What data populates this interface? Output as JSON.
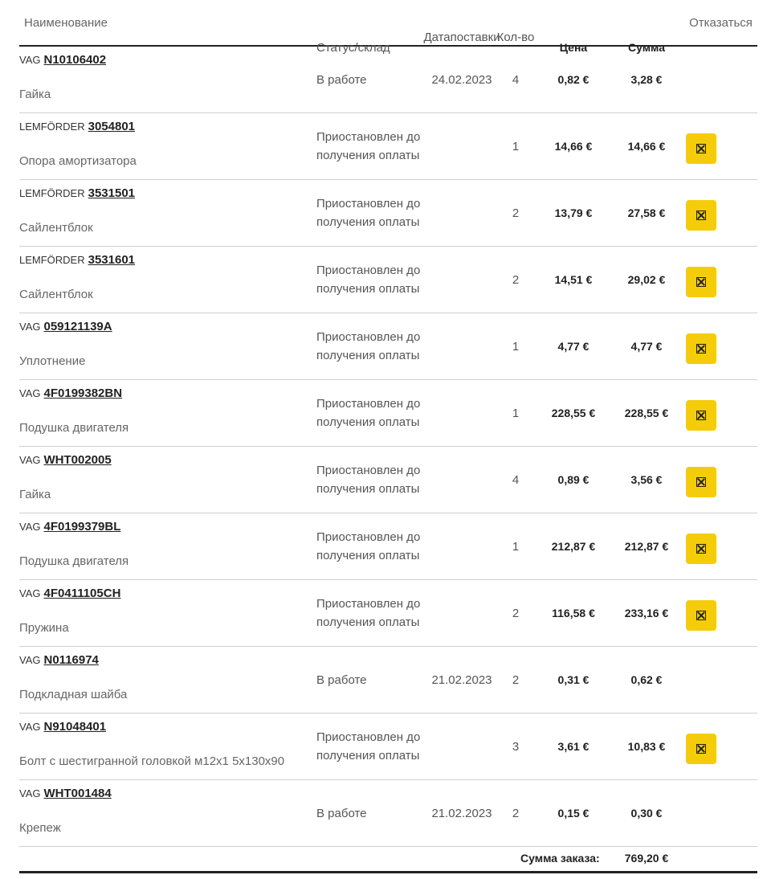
{
  "headers": {
    "name": "Наименование",
    "status": "Статус/склад",
    "date_line1": "Дата",
    "date_line2": "поставки",
    "qty_line1": "Кол-",
    "qty_line2": "во",
    "price": "Цена",
    "sum": "Сумма",
    "cancel": "Отказаться"
  },
  "rows": [
    {
      "brand": "VAG",
      "article": "N10106402",
      "descr": "Гайка",
      "status": "В работе",
      "date": "24.02.2023",
      "qty": "4",
      "price": "0,82 €",
      "sum": "3,28 €",
      "cancellable": false
    },
    {
      "brand": "LEMFÖRDER",
      "article": "3054801",
      "descr": "Опора амортизатора",
      "status": "Приостановлен до получения оплаты",
      "date": "",
      "qty": "1",
      "price": "14,66 €",
      "sum": "14,66 €",
      "cancellable": true
    },
    {
      "brand": "LEMFÖRDER",
      "article": "3531501",
      "descr": "Сайлентблок",
      "status": "Приостановлен до получения оплаты",
      "date": "",
      "qty": "2",
      "price": "13,79 €",
      "sum": "27,58 €",
      "cancellable": true
    },
    {
      "brand": "LEMFÖRDER",
      "article": "3531601",
      "descr": "Сайлентблок",
      "status": "Приостановлен до получения оплаты",
      "date": "",
      "qty": "2",
      "price": "14,51 €",
      "sum": "29,02 €",
      "cancellable": true
    },
    {
      "brand": "VAG",
      "article": "059121139A",
      "descr": "Уплотнение",
      "status": "Приостановлен до получения оплаты",
      "date": "",
      "qty": "1",
      "price": "4,77 €",
      "sum": "4,77 €",
      "cancellable": true
    },
    {
      "brand": "VAG",
      "article": "4F0199382BN",
      "descr": "Подушка двигателя",
      "status": "Приостановлен до получения оплаты",
      "date": "",
      "qty": "1",
      "price": "228,55 €",
      "sum": "228,55 €",
      "cancellable": true
    },
    {
      "brand": "VAG",
      "article": "WHT002005",
      "descr": "Гайка",
      "status": "Приостановлен до получения оплаты",
      "date": "",
      "qty": "4",
      "price": "0,89 €",
      "sum": "3,56 €",
      "cancellable": true
    },
    {
      "brand": "VAG",
      "article": "4F0199379BL",
      "descr": "Подушка двигателя",
      "status": "Приостановлен до получения оплаты",
      "date": "",
      "qty": "1",
      "price": "212,87 €",
      "sum": "212,87 €",
      "cancellable": true
    },
    {
      "brand": "VAG",
      "article": "4F0411105CH",
      "descr": "Пружина",
      "status": "Приостановлен до получения оплаты",
      "date": "",
      "qty": "2",
      "price": "116,58 €",
      "sum": "233,16 €",
      "cancellable": true
    },
    {
      "brand": "VAG",
      "article": "N0116974",
      "descr": "Подкладная шайба",
      "status": "В работе",
      "date": "21.02.2023",
      "qty": "2",
      "price": "0,31 €",
      "sum": "0,62 €",
      "cancellable": false
    },
    {
      "brand": "VAG",
      "article": "N91048401",
      "descr": "Болт с шестигранной головкой м12х1 5х130х90",
      "status": "Приостановлен до получения оплаты",
      "date": "",
      "qty": "3",
      "price": "3,61 €",
      "sum": "10,83 €",
      "cancellable": true
    },
    {
      "brand": "VAG",
      "article": "WHT001484",
      "descr": "Крепеж",
      "status": "В работе",
      "date": "21.02.2023",
      "qty": "2",
      "price": "0,15 €",
      "sum": "0,30 €",
      "cancellable": false
    }
  ],
  "cancel_icon": "x-box-icon",
  "total": {
    "label": "Сумма заказа:",
    "value": "769,20 €"
  },
  "colors": {
    "cancel_button": "#f5cc0a",
    "divider": "#cfcfcf",
    "border_strong": "#222222"
  }
}
